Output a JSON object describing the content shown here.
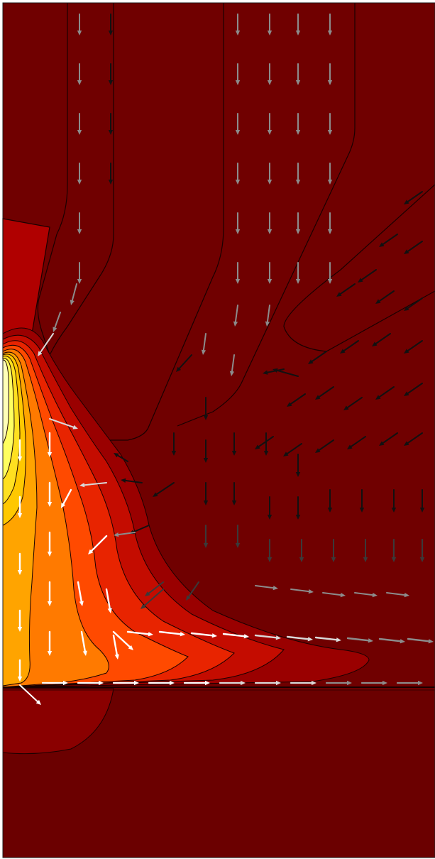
{
  "figure": {
    "kind": "temperature contour with velocity field arrows",
    "colormap": [
      "#6b0000",
      "#8a0000",
      "#b00000",
      "#d61c00",
      "#f03000",
      "#ff5a00",
      "#ff8a00",
      "#ffb000",
      "#ffd200",
      "#ffee30",
      "#ffff88",
      "#ffffd0"
    ],
    "background_color": "#700000",
    "contour_line_color": "#1a0000",
    "arrow_colors": {
      "hot": "#ffffff",
      "warm": "#d9d9d9",
      "mid": "#8c8c8c",
      "cool": "#3a3a3a",
      "cold": "#111111"
    }
  }
}
